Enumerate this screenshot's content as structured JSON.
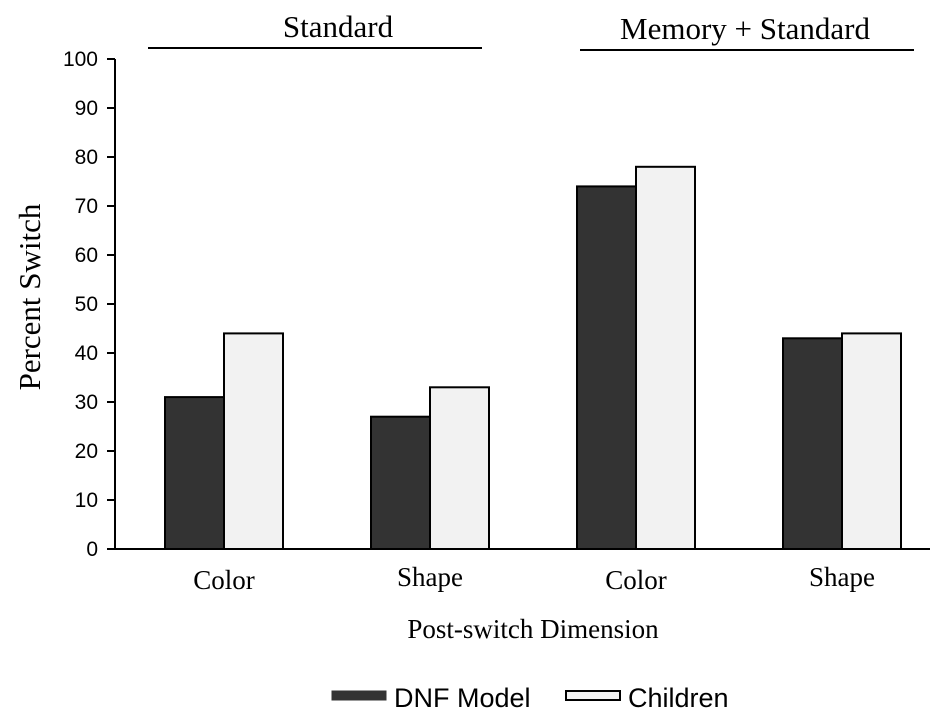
{
  "chart_data": {
    "type": "bar",
    "title": "",
    "xlabel": "Post-switch Dimension",
    "ylabel": "Percent Switch",
    "ylim": [
      0,
      100
    ],
    "yticks": [
      0,
      10,
      20,
      30,
      40,
      50,
      60,
      70,
      80,
      90,
      100
    ],
    "categories": [
      "Color",
      "Shape",
      "Color",
      "Shape"
    ],
    "groups": [
      {
        "label": "Standard",
        "categories": [
          0,
          1
        ]
      },
      {
        "label": "Memory + Standard",
        "categories": [
          2,
          3
        ]
      }
    ],
    "series": [
      {
        "name": "DNF Model",
        "values": [
          31,
          27,
          74,
          43
        ],
        "color": "#333333"
      },
      {
        "name": "Children",
        "values": [
          44,
          33,
          78,
          44
        ],
        "color": "#f2f2f2"
      }
    ],
    "grid": false,
    "legend_position": "bottom-center"
  }
}
